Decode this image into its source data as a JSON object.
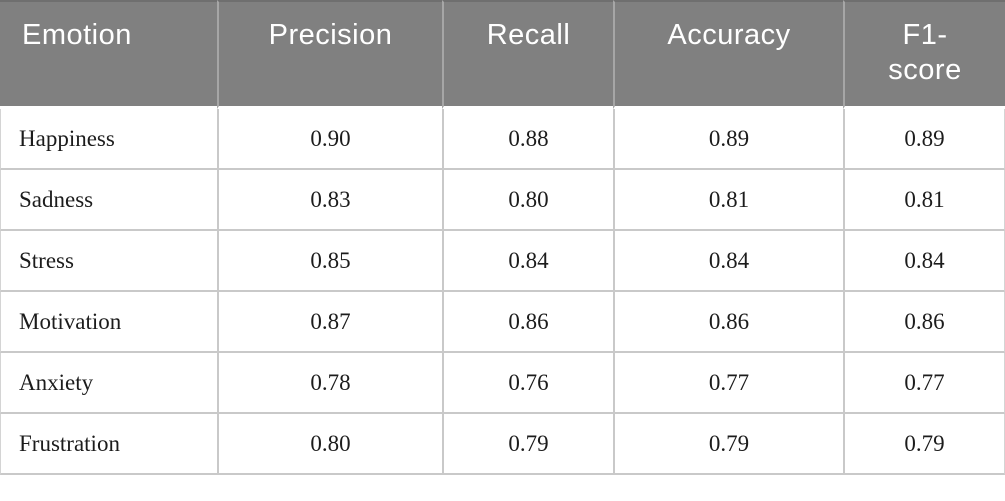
{
  "colors": {
    "header_bg": "#808080",
    "header_text": "#ffffff",
    "header_divider": "#a6a6a6",
    "header_top_border": "#6f6f6f",
    "body_text": "#1c1c1c",
    "row_border": "#c9c9c9",
    "page_bg": "#ffffff"
  },
  "table": {
    "headers": [
      "Emotion",
      "Precision",
      "Recall",
      "Accuracy",
      "F1-score"
    ],
    "rows": [
      [
        "Happiness",
        "0.90",
        "0.88",
        "0.89",
        "0.89"
      ],
      [
        "Sadness",
        "0.83",
        "0.80",
        "0.81",
        "0.81"
      ],
      [
        "Stress",
        "0.85",
        "0.84",
        "0.84",
        "0.84"
      ],
      [
        "Motivation",
        "0.87",
        "0.86",
        "0.86",
        "0.86"
      ],
      [
        "Anxiety",
        "0.78",
        "0.76",
        "0.77",
        "0.77"
      ],
      [
        "Frustration",
        "0.80",
        "0.79",
        "0.79",
        "0.79"
      ]
    ]
  },
  "chart_data": {
    "type": "table",
    "columns": [
      "Emotion",
      "Precision",
      "Recall",
      "Accuracy",
      "F1-score"
    ],
    "rows": [
      {
        "emotion": "Happiness",
        "precision": 0.9,
        "recall": 0.88,
        "accuracy": 0.89,
        "f1_score": 0.89
      },
      {
        "emotion": "Sadness",
        "precision": 0.83,
        "recall": 0.8,
        "accuracy": 0.81,
        "f1_score": 0.81
      },
      {
        "emotion": "Stress",
        "precision": 0.85,
        "recall": 0.84,
        "accuracy": 0.84,
        "f1_score": 0.84
      },
      {
        "emotion": "Motivation",
        "precision": 0.87,
        "recall": 0.86,
        "accuracy": 0.86,
        "f1_score": 0.86
      },
      {
        "emotion": "Anxiety",
        "precision": 0.78,
        "recall": 0.76,
        "accuracy": 0.77,
        "f1_score": 0.77
      },
      {
        "emotion": "Frustration",
        "precision": 0.8,
        "recall": 0.79,
        "accuracy": 0.79,
        "f1_score": 0.79
      }
    ]
  }
}
